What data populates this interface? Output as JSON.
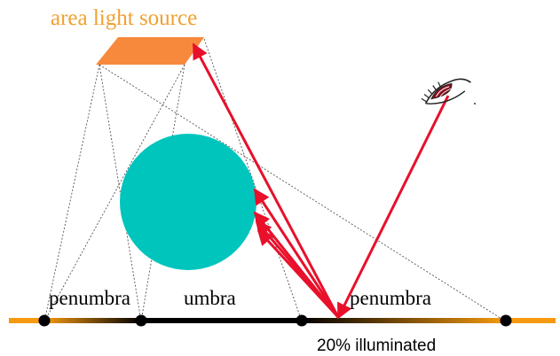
{
  "title": "area light source",
  "labels": {
    "penumbra_left": "penumbra",
    "umbra": "umbra",
    "penumbra_right": "penumbra",
    "illuminated": "20% illuminated"
  },
  "colors": {
    "light_source": "#f7893c",
    "title": "#f0a030",
    "ground": "#f59a10",
    "sphere": "#00c5bd",
    "ray": "#e8102a",
    "eye": "#8a1020",
    "shadow_core": "#000000",
    "construction_line": "#555555"
  },
  "icons": {
    "eye": "eye-icon"
  }
}
